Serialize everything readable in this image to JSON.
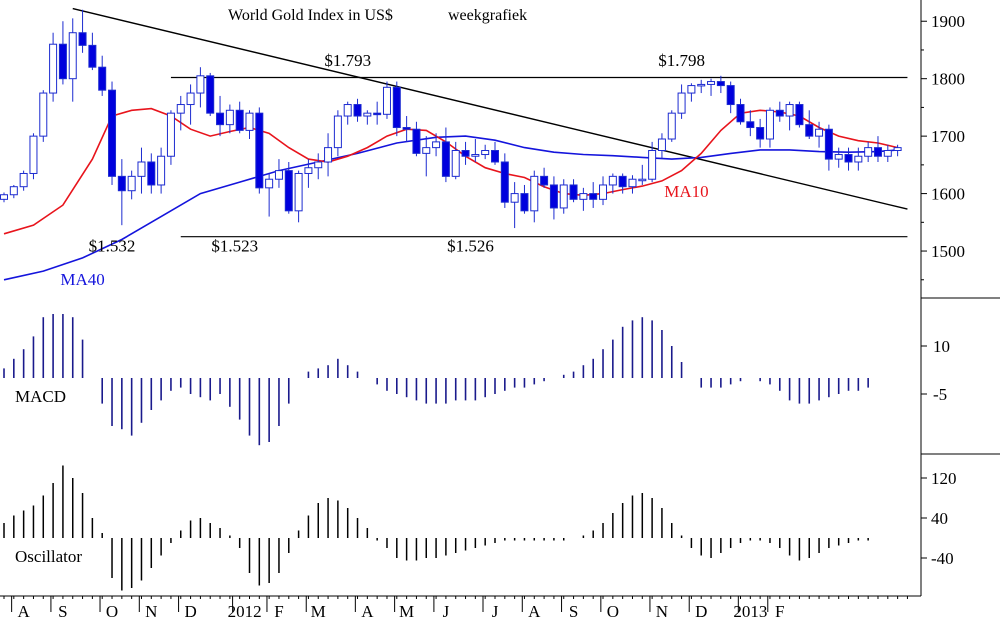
{
  "chart_data": {
    "type": "candlestick",
    "title": "World Gold Index in US$",
    "subtitle": "weekgrafiek",
    "colors": {
      "up_candle": "#ffffff",
      "down_candle": "#0000dd",
      "candle_outline": "#1c2bd0",
      "ma10": "#e8141c",
      "ma40": "#1414dc",
      "trendline": "#000000",
      "macd_bar": "#1a1a8c",
      "oscillator_bar": "#000000",
      "axis": "#000000",
      "label_price": "#000000",
      "label_ma10": "#e8141c",
      "label_ma40": "#1414dc"
    },
    "x_axis": {
      "ticks": [
        {
          "week": 2,
          "label": "A"
        },
        {
          "week": 6,
          "label": "S"
        },
        {
          "week": 11,
          "label": "O"
        },
        {
          "week": 15,
          "label": "N"
        },
        {
          "week": 19,
          "label": "D"
        },
        {
          "week": 24.5,
          "label": "2012"
        },
        {
          "week": 28,
          "label": "F"
        },
        {
          "week": 32,
          "label": "M"
        },
        {
          "week": 37,
          "label": "A"
        },
        {
          "week": 41,
          "label": "M"
        },
        {
          "week": 45,
          "label": "J"
        },
        {
          "week": 50,
          "label": "J"
        },
        {
          "week": 54,
          "label": "A"
        },
        {
          "week": 58,
          "label": "S"
        },
        {
          "week": 62,
          "label": "O"
        },
        {
          "week": 67,
          "label": "N"
        },
        {
          "week": 71,
          "label": "D"
        },
        {
          "week": 76,
          "label": "2013"
        },
        {
          "week": 79,
          "label": "F"
        }
      ]
    },
    "price_panel": {
      "ylim": [
        1420,
        1930
      ],
      "yticks": [
        1500,
        1600,
        1700,
        1800,
        1900
      ],
      "candles": [
        [
          1590,
          1602,
          1585,
          1598
        ],
        [
          1598,
          1615,
          1592,
          1612
        ],
        [
          1612,
          1640,
          1605,
          1635
        ],
        [
          1635,
          1705,
          1625,
          1700
        ],
        [
          1700,
          1780,
          1690,
          1775
        ],
        [
          1775,
          1880,
          1760,
          1860
        ],
        [
          1860,
          1900,
          1790,
          1800
        ],
        [
          1800,
          1905,
          1760,
          1880
        ],
        [
          1880,
          1920,
          1845,
          1858
        ],
        [
          1858,
          1880,
          1815,
          1820
        ],
        [
          1820,
          1840,
          1770,
          1780
        ],
        [
          1780,
          1795,
          1615,
          1630
        ],
        [
          1630,
          1660,
          1545,
          1605
        ],
        [
          1605,
          1640,
          1590,
          1630
        ],
        [
          1630,
          1680,
          1600,
          1655
        ],
        [
          1655,
          1670,
          1600,
          1615
        ],
        [
          1615,
          1680,
          1600,
          1665
        ],
        [
          1665,
          1745,
          1650,
          1740
        ],
        [
          1740,
          1770,
          1710,
          1755
        ],
        [
          1755,
          1790,
          1720,
          1775
        ],
        [
          1775,
          1820,
          1750,
          1805
        ],
        [
          1805,
          1810,
          1735,
          1740
        ],
        [
          1740,
          1770,
          1700,
          1720
        ],
        [
          1720,
          1755,
          1705,
          1745
        ],
        [
          1745,
          1760,
          1705,
          1710
        ],
        [
          1710,
          1745,
          1695,
          1740
        ],
        [
          1740,
          1750,
          1600,
          1610
        ],
        [
          1610,
          1635,
          1560,
          1625
        ],
        [
          1625,
          1660,
          1610,
          1640
        ],
        [
          1640,
          1655,
          1565,
          1570
        ],
        [
          1570,
          1640,
          1550,
          1635
        ],
        [
          1635,
          1660,
          1610,
          1645
        ],
        [
          1645,
          1670,
          1625,
          1655
        ],
        [
          1655,
          1705,
          1630,
          1680
        ],
        [
          1680,
          1745,
          1665,
          1735
        ],
        [
          1735,
          1760,
          1720,
          1755
        ],
        [
          1755,
          1765,
          1725,
          1735
        ],
        [
          1735,
          1745,
          1720,
          1740
        ],
        [
          1740,
          1760,
          1720,
          1738
        ],
        [
          1738,
          1795,
          1730,
          1785
        ],
        [
          1785,
          1795,
          1700,
          1715
        ],
        [
          1715,
          1735,
          1690,
          1712
        ],
        [
          1712,
          1725,
          1665,
          1670
        ],
        [
          1670,
          1700,
          1630,
          1680
        ],
        [
          1680,
          1705,
          1665,
          1690
        ],
        [
          1690,
          1715,
          1620,
          1630
        ],
        [
          1630,
          1690,
          1625,
          1675
        ],
        [
          1675,
          1690,
          1650,
          1665
        ],
        [
          1665,
          1695,
          1655,
          1668
        ],
        [
          1668,
          1685,
          1660,
          1675
        ],
        [
          1675,
          1690,
          1650,
          1655
        ],
        [
          1655,
          1670,
          1575,
          1585
        ],
        [
          1585,
          1620,
          1540,
          1600
        ],
        [
          1600,
          1615,
          1565,
          1570
        ],
        [
          1570,
          1640,
          1550,
          1630
        ],
        [
          1630,
          1645,
          1610,
          1615
        ],
        [
          1615,
          1630,
          1555,
          1575
        ],
        [
          1575,
          1625,
          1565,
          1615
        ],
        [
          1615,
          1625,
          1585,
          1590
        ],
        [
          1590,
          1610,
          1570,
          1600
        ],
        [
          1600,
          1620,
          1575,
          1590
        ],
        [
          1590,
          1630,
          1580,
          1615
        ],
        [
          1615,
          1635,
          1600,
          1630
        ],
        [
          1630,
          1635,
          1600,
          1612
        ],
        [
          1612,
          1632,
          1600,
          1625
        ],
        [
          1625,
          1650,
          1615,
          1625
        ],
        [
          1625,
          1690,
          1620,
          1675
        ],
        [
          1675,
          1705,
          1660,
          1695
        ],
        [
          1695,
          1745,
          1690,
          1740
        ],
        [
          1740,
          1790,
          1730,
          1775
        ],
        [
          1775,
          1792,
          1760,
          1788
        ],
        [
          1788,
          1798,
          1775,
          1790
        ],
        [
          1790,
          1800,
          1770,
          1795
        ],
        [
          1795,
          1805,
          1775,
          1788
        ],
        [
          1788,
          1795,
          1740,
          1755
        ],
        [
          1755,
          1765,
          1720,
          1725
        ],
        [
          1725,
          1745,
          1700,
          1715
        ],
        [
          1715,
          1730,
          1680,
          1695
        ],
        [
          1695,
          1750,
          1680,
          1745
        ],
        [
          1745,
          1760,
          1725,
          1735
        ],
        [
          1735,
          1760,
          1710,
          1755
        ],
        [
          1755,
          1760,
          1715,
          1720
        ],
        [
          1720,
          1745,
          1695,
          1700
        ],
        [
          1700,
          1725,
          1680,
          1712
        ],
        [
          1712,
          1720,
          1640,
          1660
        ],
        [
          1660,
          1680,
          1645,
          1668
        ],
        [
          1668,
          1680,
          1640,
          1655
        ],
        [
          1655,
          1680,
          1640,
          1665
        ],
        [
          1665,
          1690,
          1655,
          1680
        ],
        [
          1680,
          1700,
          1655,
          1665
        ],
        [
          1665,
          1685,
          1655,
          1675
        ],
        [
          1675,
          1685,
          1665,
          1680
        ]
      ],
      "ma10": [
        [
          0,
          1530
        ],
        [
          3,
          1545
        ],
        [
          6,
          1580
        ],
        [
          9,
          1660
        ],
        [
          11,
          1735
        ],
        [
          13,
          1745
        ],
        [
          15,
          1748
        ],
        [
          17,
          1735
        ],
        [
          19,
          1712
        ],
        [
          21,
          1700
        ],
        [
          23,
          1708
        ],
        [
          25,
          1715
        ],
        [
          27,
          1705
        ],
        [
          29,
          1680
        ],
        [
          31,
          1660
        ],
        [
          33,
          1655
        ],
        [
          35,
          1665
        ],
        [
          37,
          1680
        ],
        [
          39,
          1700
        ],
        [
          41,
          1712
        ],
        [
          43,
          1710
        ],
        [
          45,
          1690
        ],
        [
          47,
          1665
        ],
        [
          49,
          1645
        ],
        [
          51,
          1635
        ],
        [
          53,
          1628
        ],
        [
          55,
          1612
        ],
        [
          57,
          1600
        ],
        [
          59,
          1597
        ],
        [
          61,
          1600
        ],
        [
          63,
          1607
        ],
        [
          65,
          1613
        ],
        [
          67,
          1622
        ],
        [
          69,
          1640
        ],
        [
          71,
          1670
        ],
        [
          73,
          1710
        ],
        [
          75,
          1740
        ],
        [
          77,
          1745
        ],
        [
          79,
          1742
        ],
        [
          81,
          1735
        ],
        [
          83,
          1715
        ],
        [
          85,
          1700
        ],
        [
          87,
          1692
        ],
        [
          89,
          1688
        ],
        [
          91,
          1680
        ]
      ],
      "ma40": [
        [
          0,
          1450
        ],
        [
          4,
          1465
        ],
        [
          8,
          1488
        ],
        [
          12,
          1520
        ],
        [
          16,
          1560
        ],
        [
          20,
          1600
        ],
        [
          24,
          1620
        ],
        [
          28,
          1640
        ],
        [
          32,
          1655
        ],
        [
          36,
          1670
        ],
        [
          40,
          1688
        ],
        [
          44,
          1698
        ],
        [
          47,
          1700
        ],
        [
          50,
          1693
        ],
        [
          53,
          1680
        ],
        [
          56,
          1672
        ],
        [
          59,
          1668
        ],
        [
          62,
          1666
        ],
        [
          65,
          1663
        ],
        [
          68,
          1660
        ],
        [
          71,
          1663
        ],
        [
          74,
          1670
        ],
        [
          77,
          1676
        ],
        [
          80,
          1676
        ],
        [
          83,
          1673
        ],
        [
          86,
          1672
        ],
        [
          89,
          1673
        ],
        [
          91,
          1676
        ]
      ],
      "horizontal_lines": [
        {
          "x1": 18,
          "x2": 92,
          "y": 1525
        },
        {
          "x1": 17,
          "x2": 92,
          "y": 1802
        }
      ],
      "trendline": {
        "x1": 7,
        "y1": 1922,
        "x2": 92,
        "y2": 1573
      },
      "annotations": [
        {
          "week": 11,
          "y": 1499,
          "text": "$1.532",
          "role": "price"
        },
        {
          "week": 23.5,
          "y": 1499,
          "text": "$1.523",
          "role": "price"
        },
        {
          "week": 47.5,
          "y": 1499,
          "text": "$1.526",
          "role": "price"
        },
        {
          "week": 35,
          "y": 1822,
          "text": "$1.793",
          "role": "price"
        },
        {
          "week": 69,
          "y": 1822,
          "text": "$1.798",
          "role": "price"
        },
        {
          "week": 69.5,
          "y": 1594,
          "text": "MA10",
          "role": "ma10"
        },
        {
          "week": 8,
          "y": 1441,
          "text": "MA40",
          "role": "ma40"
        }
      ]
    },
    "macd_panel": {
      "label": "MACD",
      "ylim": [
        -28,
        26
      ],
      "yticks": [
        10,
        -5
      ],
      "ytick_labels": [
        "10",
        "-5"
      ],
      "values": [
        3,
        6,
        9,
        13,
        19,
        20,
        20,
        19,
        12,
        0,
        -8,
        -15,
        -16,
        -18,
        -14,
        -10,
        -7,
        -4,
        -3,
        -5,
        -6,
        -7,
        -5,
        -9,
        -13,
        -18,
        -21,
        -20,
        -15,
        -8,
        0,
        2,
        3,
        4,
        6,
        4,
        2,
        0,
        -2,
        -4,
        -5,
        -6,
        -7,
        -8,
        -8,
        -8,
        -7,
        -7,
        -7,
        -6,
        -5,
        -4,
        -3,
        -3,
        -2,
        -1,
        0,
        1,
        2,
        4,
        6,
        9,
        12,
        16,
        18,
        19,
        18,
        15,
        10,
        5,
        0,
        -3,
        -3,
        -3,
        -2,
        -1,
        0,
        -1,
        -2,
        -4,
        -7,
        -8,
        -8,
        -7,
        -6,
        -5,
        -4,
        -4,
        -3
      ]
    },
    "oscillator_panel": {
      "label": "Oscillator",
      "ylim": [
        -110,
        165
      ],
      "yticks": [
        120,
        40,
        -40
      ],
      "ytick_labels": [
        "120",
        "40",
        "-40"
      ],
      "values": [
        30,
        45,
        55,
        65,
        85,
        110,
        145,
        120,
        90,
        40,
        10,
        -80,
        -105,
        -100,
        -85,
        -60,
        -35,
        -10,
        15,
        35,
        40,
        30,
        20,
        5,
        -20,
        -70,
        -95,
        -90,
        -70,
        -30,
        15,
        45,
        70,
        80,
        75,
        60,
        40,
        20,
        -5,
        -20,
        -40,
        -45,
        -45,
        -40,
        -40,
        -35,
        -30,
        -25,
        -20,
        -15,
        -10,
        -5,
        -5,
        -5,
        -5,
        -5,
        -5,
        -5,
        0,
        5,
        15,
        30,
        50,
        70,
        85,
        90,
        80,
        60,
        30,
        5,
        -20,
        -35,
        -40,
        -30,
        -20,
        -10,
        -5,
        -5,
        -10,
        -20,
        -35,
        -45,
        -40,
        -30,
        -20,
        -15,
        -10,
        -5,
        -5
      ]
    }
  }
}
